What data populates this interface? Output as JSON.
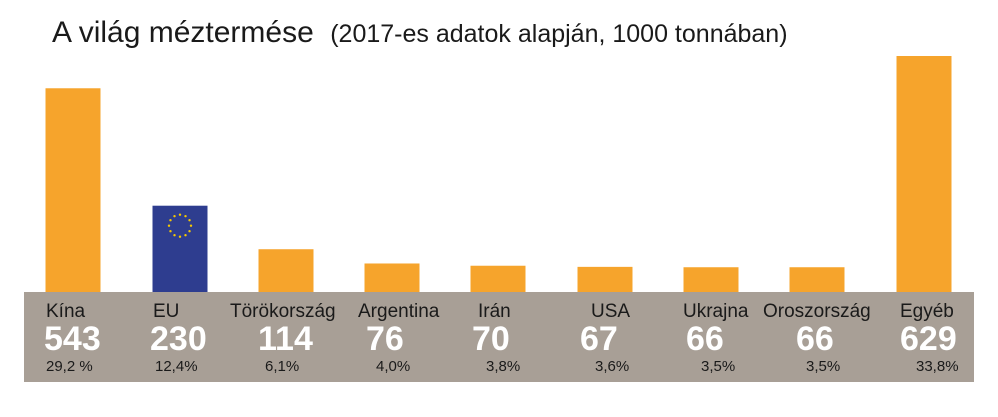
{
  "title": {
    "main": "A világ méztermése",
    "sub": "(2017-es adatok alapján, 1000 tonnában)"
  },
  "colors": {
    "bar": "#f6a42c",
    "bar_eu": "#2e3d8f",
    "eu_stars": "#f6c800",
    "band": "#a89f96",
    "value_text": "#ffffff"
  },
  "chart_data": {
    "type": "bar",
    "title": "A világ méztermése (2017-es adatok alapján, 1000 tonnában)",
    "categories": [
      "Kína",
      "EU",
      "Törökország",
      "Argentina",
      "Irán",
      "USA",
      "Ukrajna",
      "Oroszország",
      "Egyéb"
    ],
    "values": [
      543,
      230,
      114,
      76,
      70,
      67,
      66,
      66,
      629
    ],
    "value_labels": [
      "543",
      "230",
      "114",
      "76",
      "70",
      "67",
      "66",
      "66",
      "629"
    ],
    "percent_labels": [
      "29,2 %",
      "12,4%",
      "6,1%",
      "4,0%",
      "3,8%",
      "3,6%",
      "3,5%",
      "3,5%",
      "33,8%"
    ],
    "ylim": [
      0,
      629
    ],
    "grid": false,
    "legend": "none"
  }
}
